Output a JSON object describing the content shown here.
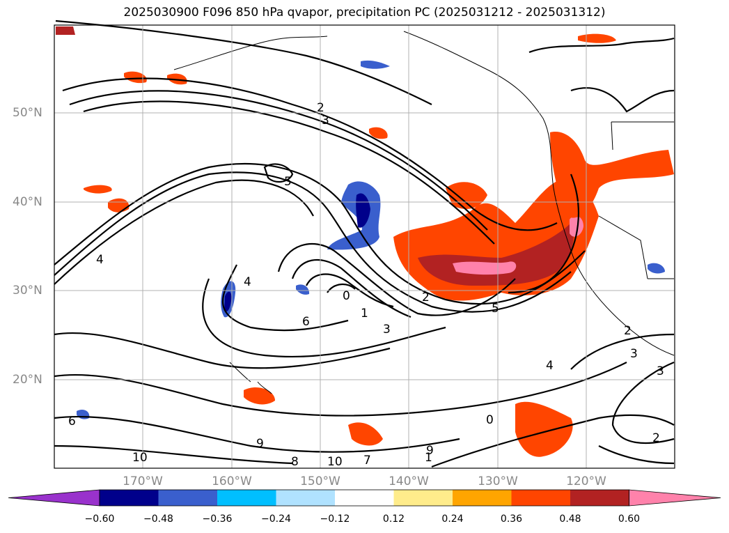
{
  "title": "2025030900 F096 850 hPa qvapor, precipitation PC (2025031212 - 2025031312)",
  "map": {
    "lat_labels": [
      "50°N",
      "40°N",
      "30°N",
      "20°N"
    ],
    "lon_labels": [
      "170°W",
      "160°W",
      "150°W",
      "140°W",
      "130°W",
      "120°W"
    ],
    "contour_labels": [
      "2",
      "3",
      "5",
      "4",
      "4",
      "6",
      "0",
      "1",
      "3",
      "2",
      "5",
      "6",
      "8",
      "9",
      "10",
      "7",
      "1",
      "0",
      "2",
      "3",
      "3",
      "4",
      "2",
      "9",
      "10"
    ]
  },
  "colorbar": {
    "ticks": [
      "−0.60",
      "−0.48",
      "−0.36",
      "−0.24",
      "−0.12",
      "0.12",
      "0.24",
      "0.36",
      "0.48",
      "0.60"
    ],
    "colors": [
      "#9932cc",
      "#00008b",
      "#3a5fcd",
      "#00bfff",
      "#b0e2ff",
      "#ffffff",
      "#ffec8b",
      "#ffa500",
      "#ff4500",
      "#b22222",
      "#ff82ab"
    ]
  },
  "colors": {
    "land_outline": "#000000",
    "grid": "#b0b0b0",
    "neg_fill": "#3a5fcd",
    "pos_fill": "#ff4500",
    "pos_fill_strong": "#b22222",
    "pos_fill_max": "#ff82ab"
  }
}
